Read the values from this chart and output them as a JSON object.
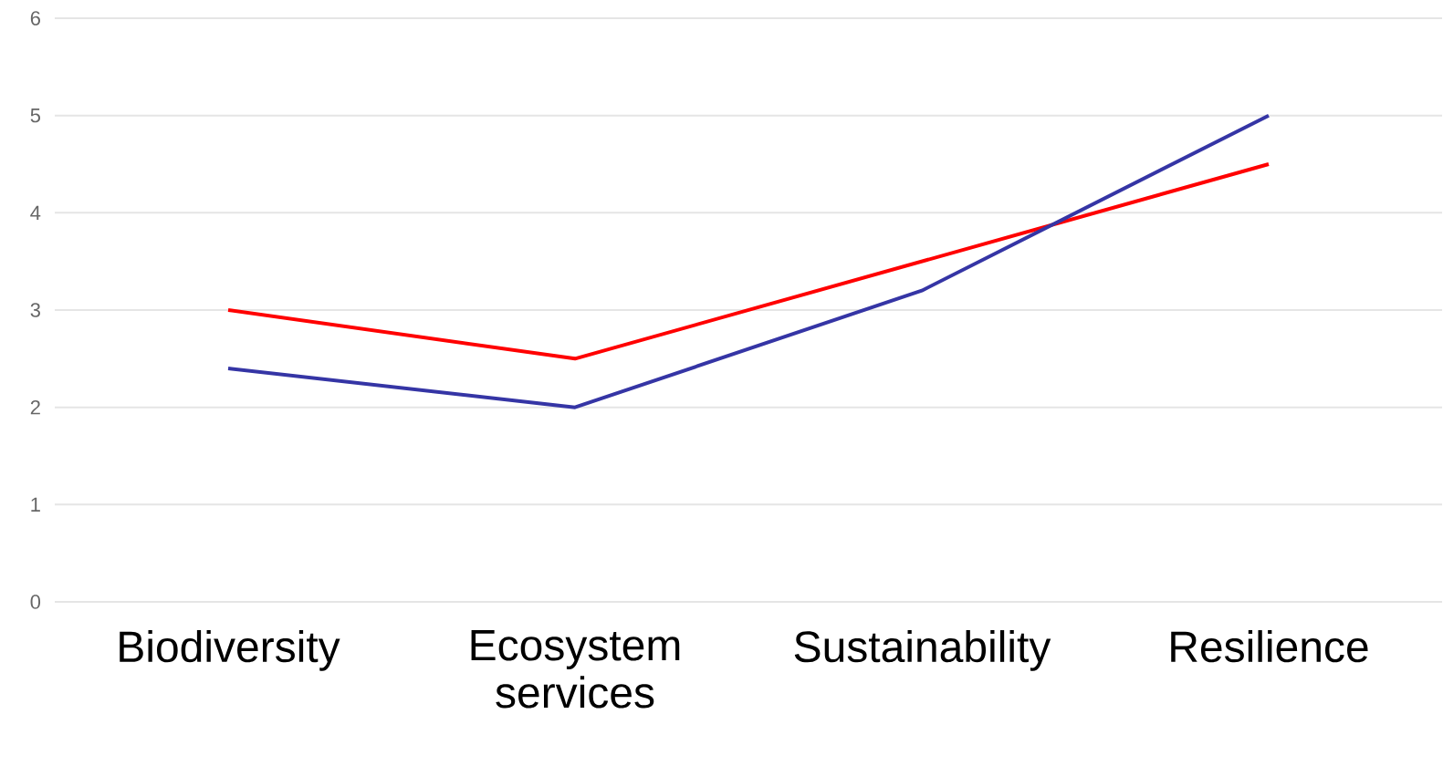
{
  "chart_data": {
    "type": "line",
    "categories": [
      "Biodiversity",
      "Ecosystem services",
      "Sustainability",
      "Resilience"
    ],
    "series": [
      {
        "color": "#ff0000",
        "values": [
          3,
          2.5,
          3.5,
          4.5
        ]
      },
      {
        "color": "#3535a5",
        "values": [
          2.4,
          2.0,
          3.2,
          5.0
        ]
      }
    ],
    "ylim": [
      0,
      6
    ],
    "yticks": [
      0,
      1,
      2,
      3,
      4,
      5,
      6
    ],
    "grid": "y",
    "marker": "none",
    "line_style": "solid"
  }
}
